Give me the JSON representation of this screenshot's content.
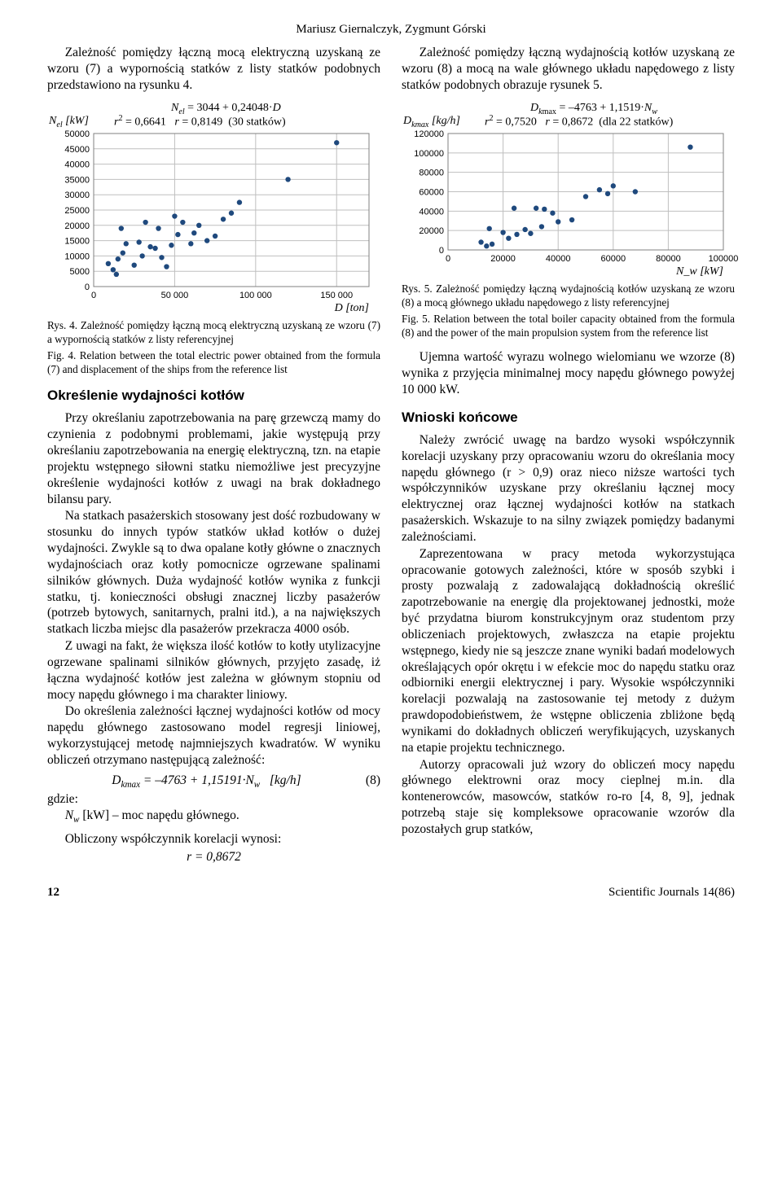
{
  "authors": "Mariusz Giernalczyk, Zygmunt Górski",
  "left": {
    "intro": "Zależność pomiędzy łączną mocą elektryczną uzyskaną ze wzoru (7) a wypornością statków z listy statków podobnych przedstawiono na rysunku 4.",
    "fig4": {
      "type": "scatter",
      "formula_lines": [
        "N_el [kW]",
        "",
        "N_el = 3044 + 0,24048·D",
        "r² = 0,6641   r = 0,8149  (30 statków)"
      ],
      "title_axis_y_label": "N_el [kW]",
      "axis_x_label": "D [ton]",
      "xlim": [
        0,
        170000
      ],
      "xticks": [
        0,
        50000,
        100000,
        150000
      ],
      "xtick_labels": [
        "0",
        "50 000",
        "100 000",
        "150 000"
      ],
      "ylim": [
        0,
        50000
      ],
      "yticks": [
        0,
        5000,
        10000,
        15000,
        20000,
        25000,
        30000,
        35000,
        40000,
        45000,
        50000
      ],
      "ytick_labels": [
        "0",
        "5000",
        "10000",
        "15000",
        "20000",
        "25000",
        "30000",
        "35000",
        "40000",
        "45000",
        "50000"
      ],
      "grid_color": "#bfbfbf",
      "background": "#ffffff",
      "point_color": "#1f497d",
      "point_radius": 3.2,
      "border_color": "#808080",
      "points": [
        [
          9000,
          7500
        ],
        [
          12000,
          5500
        ],
        [
          14000,
          4000
        ],
        [
          15000,
          9000
        ],
        [
          18000,
          11000
        ],
        [
          20000,
          14000
        ],
        [
          17000,
          19000
        ],
        [
          25000,
          7000
        ],
        [
          28000,
          14500
        ],
        [
          30000,
          10000
        ],
        [
          32000,
          21000
        ],
        [
          35000,
          13000
        ],
        [
          38000,
          12500
        ],
        [
          40000,
          19000
        ],
        [
          42000,
          9500
        ],
        [
          45000,
          6500
        ],
        [
          48000,
          13500
        ],
        [
          50000,
          23000
        ],
        [
          52000,
          17000
        ],
        [
          55000,
          21000
        ],
        [
          60000,
          14000
        ],
        [
          62000,
          17500
        ],
        [
          65000,
          20000
        ],
        [
          70000,
          15000
        ],
        [
          75000,
          16500
        ],
        [
          80000,
          22000
        ],
        [
          85000,
          24000
        ],
        [
          90000,
          27500
        ],
        [
          120000,
          35000
        ],
        [
          150000,
          47000
        ]
      ],
      "caption_pl": "Rys. 4. Zależność pomiędzy łączną mocą elektryczną uzyskaną ze wzoru (7) a wypornością statków z listy referencyjnej",
      "caption_en": "Fig. 4. Relation between the total electric power obtained from the formula (7) and displacement of the ships from the reference list"
    },
    "section_kotlow": "Określenie wydajności kotłów",
    "p1": "Przy określaniu zapotrzebowania na parę grzewczą mamy do czynienia z podobnymi problemami, jakie występują przy określaniu zapotrzebowania na energię elektryczną, tzn. na etapie projektu wstępnego siłowni statku niemożliwe jest precyzyjne określenie wydajności kotłów z uwagi na brak dokładnego bilansu pary.",
    "p2": "Na statkach pasażerskich stosowany jest dość rozbudowany w stosunku do innych typów statków układ kotłów o dużej wydajności. Zwykle są to dwa opalane kotły główne o znacznych wydajnościach oraz kotły pomocnicze ogrzewane spalinami silników głównych. Duża wydajność kotłów wynika z funkcji statku, tj. konieczności obsługi znacznej liczby pasażerów (potrzeb bytowych, sanitarnych, pralni itd.), a na największych statkach liczba miejsc dla pasażerów przekracza 4000 osób.",
    "p3": "Z uwagi na fakt, że większa ilość kotłów to kotły utylizacyjne ogrzewane spalinami silników głównych, przyjęto zasadę, iż łączna wydajność kotłów jest zależna w głównym stopniu od mocy napędu głównego i ma charakter liniowy.",
    "p4": "Do określenia zależności łącznej wydajności kotłów od mocy napędu głównego zastosowano model regresji liniowej, wykorzystującej metodę najmniejszych kwadratów. W wyniku obliczeń otrzymano następującą zależność:",
    "eq8": "D_kmax = –4763 + 1,15191·N_w   [kg/h]",
    "eq8_num": "(8)",
    "where_lbl": "gdzie:",
    "where_def": "N_w [kW] – moc napędu głównego.",
    "corr_sentence": "Obliczony współczynnik korelacji wynosi:",
    "corr_val": "r = 0,8672"
  },
  "right": {
    "intro": "Zależność pomiędzy łączną wydajnością kotłów uzyskaną ze wzoru (8) a mocą na wale głównego układu napędowego z listy statków podobnych obrazuje rysunek 5.",
    "fig5": {
      "type": "scatter",
      "formula_lines": [
        "D_kmax [kg/h]",
        "",
        "D_kmax = –4763 + 1,1519·N_w",
        "r² = 0,7520   r = 0,8672  (dla 22 statków)"
      ],
      "axis_x_label": "N_w [kW]",
      "xlim": [
        0,
        100000
      ],
      "xticks": [
        0,
        20000,
        40000,
        60000,
        80000,
        100000
      ],
      "xtick_labels": [
        "0",
        "20000",
        "40000",
        "60000",
        "80000",
        "100000"
      ],
      "ylim": [
        0,
        120000
      ],
      "yticks": [
        0,
        20000,
        40000,
        60000,
        80000,
        100000,
        120000
      ],
      "ytick_labels": [
        "0",
        "20000",
        "40000",
        "60000",
        "80000",
        "100000",
        "120000"
      ],
      "grid_color": "#bfbfbf",
      "background": "#ffffff",
      "point_color": "#1f497d",
      "point_radius": 3.2,
      "border_color": "#808080",
      "points": [
        [
          12000,
          8000
        ],
        [
          14000,
          4000
        ],
        [
          15000,
          22000
        ],
        [
          16000,
          6000
        ],
        [
          20000,
          18000
        ],
        [
          22000,
          12000
        ],
        [
          24000,
          43000
        ],
        [
          25000,
          16000
        ],
        [
          28000,
          21000
        ],
        [
          30000,
          17000
        ],
        [
          32000,
          43000
        ],
        [
          34000,
          24000
        ],
        [
          35000,
          42000
        ],
        [
          38000,
          38000
        ],
        [
          40000,
          29000
        ],
        [
          45000,
          31000
        ],
        [
          50000,
          55000
        ],
        [
          55000,
          62000
        ],
        [
          58000,
          58000
        ],
        [
          60000,
          66000
        ],
        [
          68000,
          60000
        ],
        [
          88000,
          106000
        ]
      ],
      "caption_pl": "Rys. 5. Zależność pomiędzy łączną wydajnością kotłów uzyskaną ze wzoru (8) a mocą głównego układu napędowego z listy referencyjnej",
      "caption_en": "Fig. 5. Relation between the total boiler capacity obtained from the formula (8) and the power of the main propulsion system from the reference list"
    },
    "after_fig": "Ujemna wartość wyrazu wolnego wielomianu we wzorze (8) wynika z przyjęcia minimalnej mocy napędu głównego powyżej 10 000 kW.",
    "section_wnioski": "Wnioski końcowe",
    "w1": "Należy zwrócić uwagę na bardzo wysoki współczynnik korelacji uzyskany przy opracowaniu wzoru do określania mocy napędu głównego (r > 0,9) oraz nieco niższe wartości tych współczynników uzyskane przy określaniu łącznej mocy elektrycznej oraz łącznej wydajności kotłów na statkach pasażerskich. Wskazuje to na silny związek pomiędzy badanymi zależnościami.",
    "w2": "Zaprezentowana w pracy metoda wykorzystująca opracowanie gotowych zależności, które w sposób szybki i prosty pozwalają z zadowalającą dokładnością określić zapotrzebowanie na energię dla projektowanej jednostki, może być przydatna biurom konstrukcyjnym oraz studentom przy obliczeniach projektowych, zwłaszcza na etapie projektu wstępnego, kiedy nie są jeszcze znane wyniki badań modelowych określających opór okrętu i w efekcie moc do napędu statku oraz odbiorniki energii elektrycznej i pary. Wysokie współczynniki korelacji pozwalają na zastosowanie tej metody z dużym prawdopodobieństwem, że wstępne obliczenia zbliżone będą wynikami do dokładnych obliczeń weryfikujących, uzyskanych na etapie projektu technicznego.",
    "w3": "Autorzy opracowali już wzory do obliczeń mocy napędu głównego elektrowni oraz mocy cieplnej m.in. dla kontenerowców, masowców, statków ro-ro [4, 8, 9], jednak potrzebą staje się kompleksowe opracowanie wzorów dla pozostałych grup statków,"
  },
  "footer": {
    "page": "12",
    "journal": "Scientific Journals 14(86)"
  }
}
